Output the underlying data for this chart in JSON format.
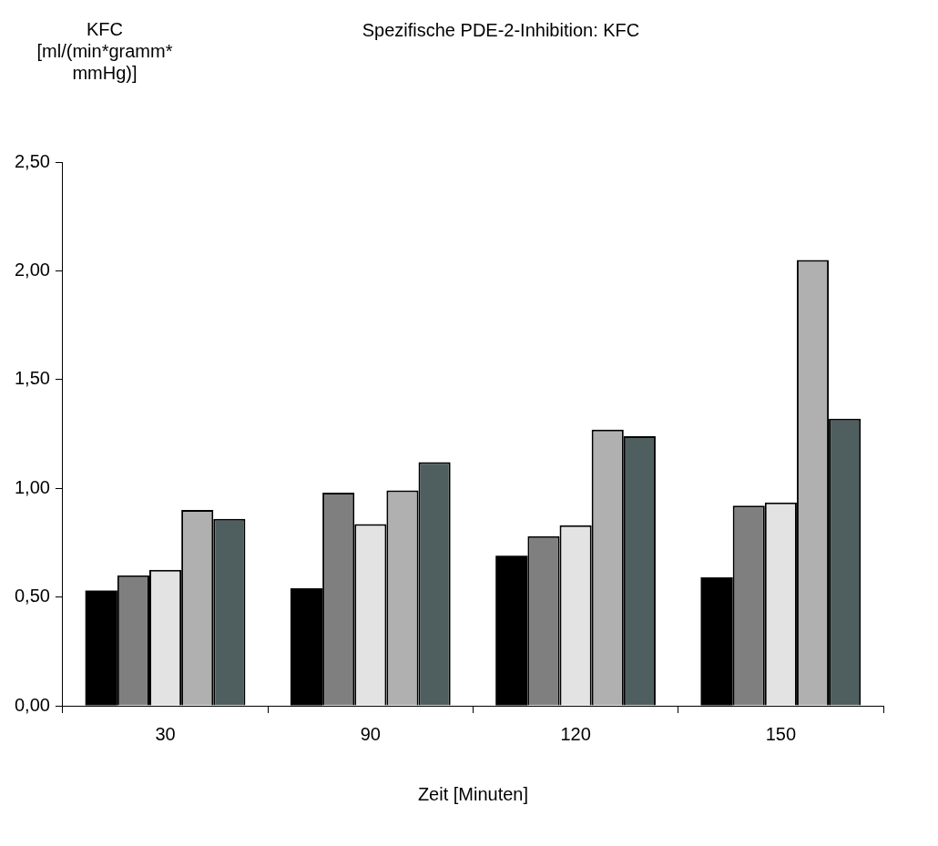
{
  "chart_data": {
    "type": "bar",
    "title": "Spezifische PDE-2-Inhibition: KFC",
    "xlabel": "Zeit [Minuten]",
    "ylabel": "KFC [ml/(min*gramm* mmHg)]",
    "categories": [
      "30",
      "90",
      "120",
      "150"
    ],
    "series": [
      {
        "color": "#000000",
        "values": [
          0.53,
          0.54,
          0.69,
          0.59
        ]
      },
      {
        "color": "#7f7f7f",
        "values": [
          0.6,
          0.98,
          0.78,
          0.92
        ]
      },
      {
        "color": "#e3e3e3",
        "values": [
          0.625,
          0.835,
          0.83,
          0.935
        ]
      },
      {
        "color": "#b0b0b0",
        "values": [
          0.9,
          0.99,
          1.27,
          2.05
        ]
      },
      {
        "color": "#4f5f5f",
        "values": [
          0.86,
          1.12,
          1.24,
          1.32
        ]
      }
    ],
    "ylim": [
      0,
      2.5
    ],
    "yticks": [
      {
        "value": 0,
        "label": "0,00"
      },
      {
        "value": 0.5,
        "label": "0,50"
      },
      {
        "value": 1,
        "label": "1,00"
      },
      {
        "value": 1.5,
        "label": "1,50"
      },
      {
        "value": 2,
        "label": "2,00"
      },
      {
        "value": 2.5,
        "label": "2,50"
      }
    ],
    "grid": false,
    "legend": false
  }
}
